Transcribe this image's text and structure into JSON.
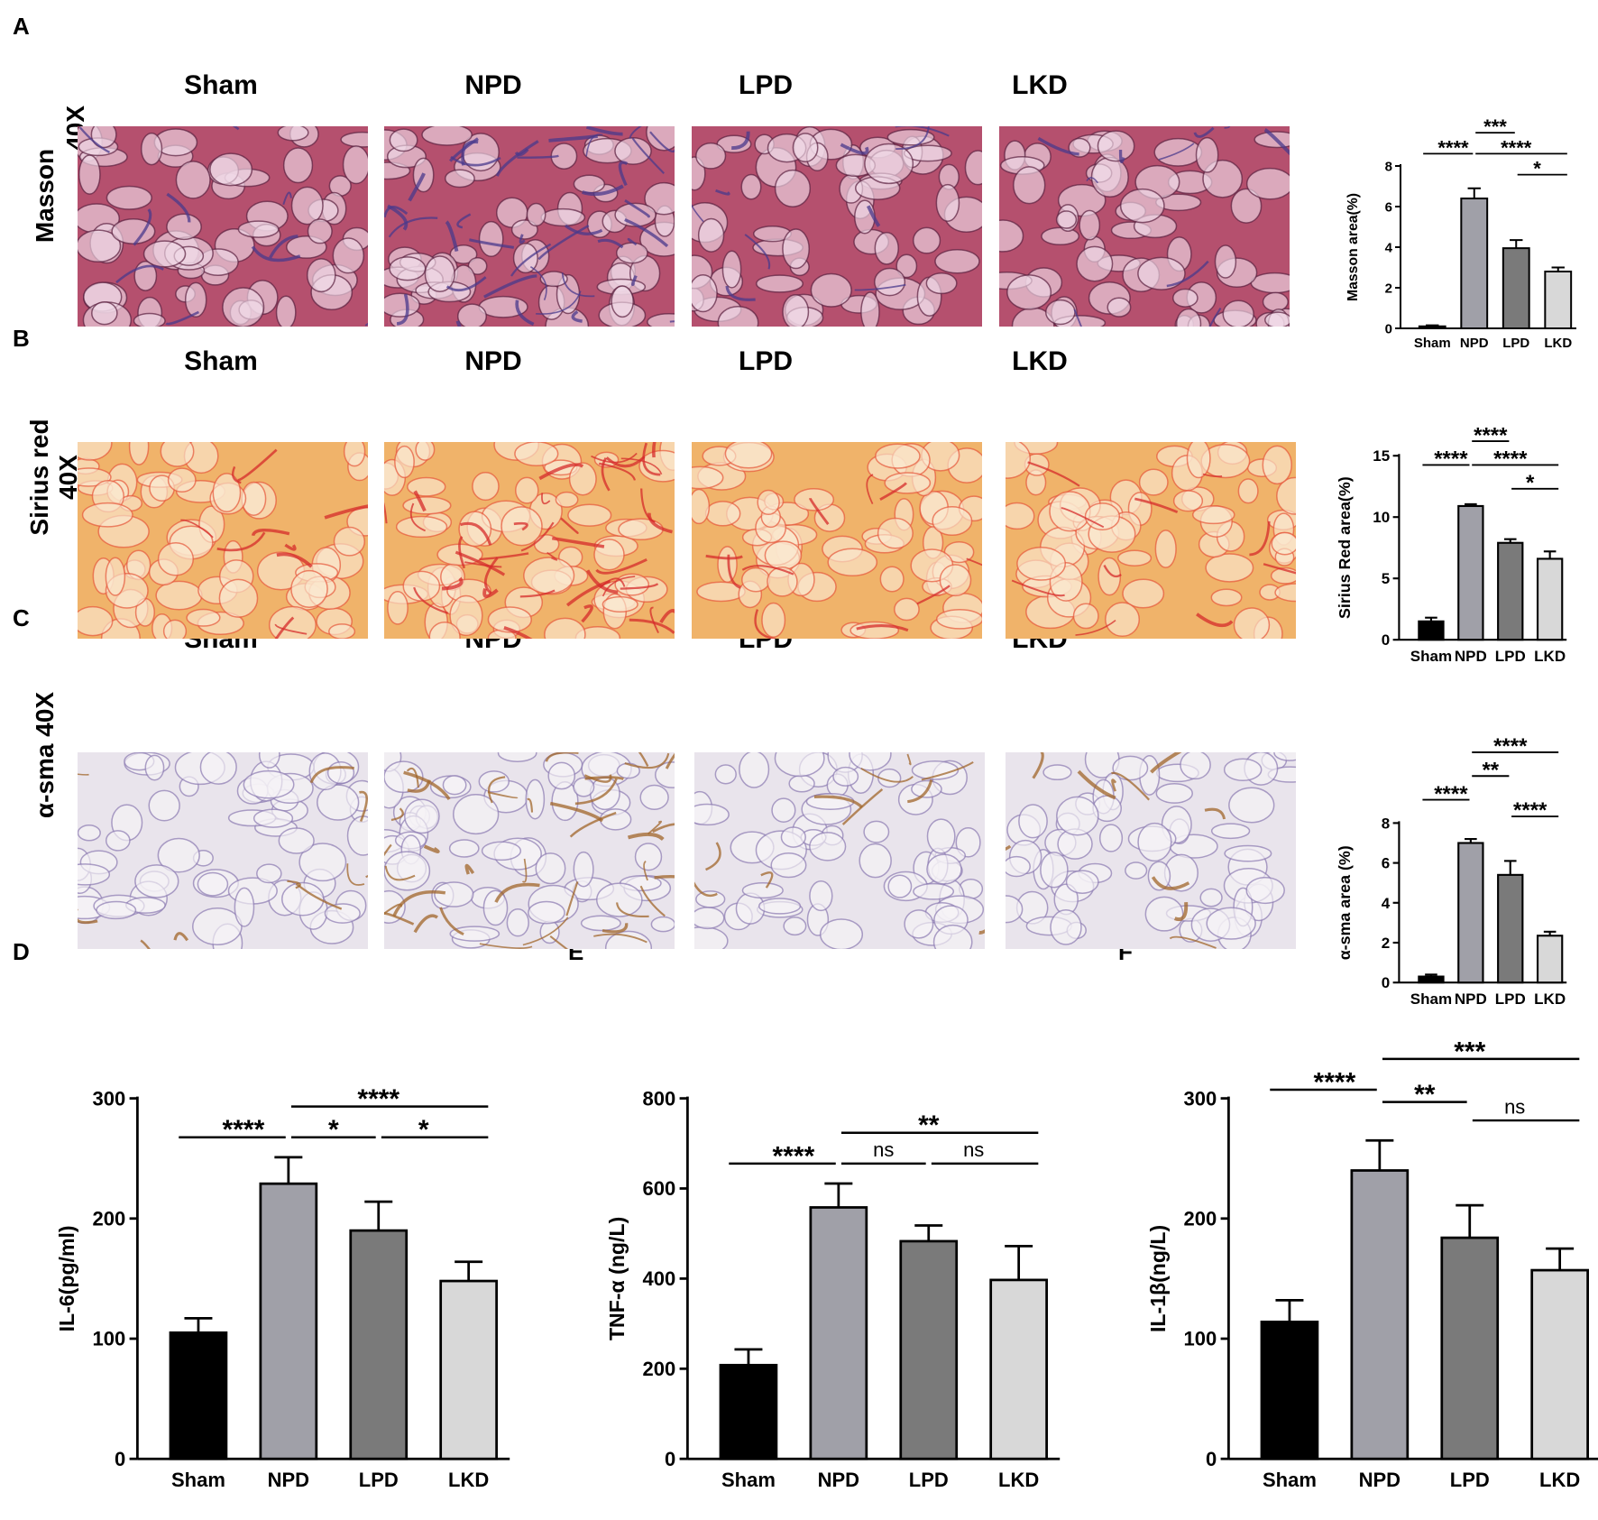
{
  "panels": {
    "A": {
      "letter": "A",
      "row_label": [
        "Masson",
        "40X"
      ]
    },
    "B": {
      "letter": "B",
      "row_label": [
        "Sirius red",
        "40X"
      ]
    },
    "C": {
      "letter": "C",
      "row_label": [
        "α-sma 40X"
      ]
    },
    "D": {
      "letter": "D"
    },
    "E": {
      "letter": "E"
    },
    "F": {
      "letter": "F"
    }
  },
  "group_headers": [
    "Sham",
    "NPD",
    "LPD",
    "LKD"
  ],
  "image_styles": {
    "masson": {
      "base": "#b5506e",
      "line": "#5a1f3e",
      "spot": "#efd9e6",
      "accent": "#4a3a8c"
    },
    "sirius": {
      "base": "#f0b36a",
      "line": "#e6573a",
      "spot": "#fbe8cf",
      "accent": "#d62b2b"
    },
    "asma": {
      "base": "#e9e4ec",
      "line": "#8a79b0",
      "spot": "#f6f3f6",
      "accent": "#a0652a"
    }
  },
  "bar_colors": [
    "#000000",
    "#a0a0a8",
    "#7a7a7a",
    "#d8d8d8"
  ],
  "chart_data": [
    {
      "id": "A",
      "type": "bar",
      "ylabel": "Masson area(%)",
      "categories": [
        "Sham",
        "NPD",
        "LPD",
        "LKD"
      ],
      "values": [
        0.1,
        6.4,
        3.95,
        2.8
      ],
      "errors": [
        0.05,
        0.5,
        0.4,
        0.2
      ],
      "ylim": [
        0,
        8
      ],
      "yticks": [
        0,
        2,
        4,
        6,
        8
      ],
      "significance": [
        {
          "from": 1,
          "to": 2,
          "label": "***",
          "level": 3
        },
        {
          "from": 0,
          "to": 1,
          "label": "****",
          "level": 2
        },
        {
          "from": 1,
          "to": 3,
          "label": "****",
          "level": 2
        },
        {
          "from": 2,
          "to": 3,
          "label": "*",
          "level": 1
        }
      ]
    },
    {
      "id": "B",
      "type": "bar",
      "ylabel": "Sirius Red area(%)",
      "categories": [
        "Sham",
        "NPD",
        "LPD",
        "LKD"
      ],
      "values": [
        1.5,
        10.9,
        7.9,
        6.6
      ],
      "errors": [
        0.3,
        0.15,
        0.3,
        0.6
      ],
      "ylim": [
        0,
        15
      ],
      "yticks": [
        0,
        5,
        10,
        15
      ],
      "significance": [
        {
          "from": 1,
          "to": 2,
          "label": "****",
          "level": 3
        },
        {
          "from": 0,
          "to": 1,
          "label": "****",
          "level": 2
        },
        {
          "from": 1,
          "to": 3,
          "label": "****",
          "level": 2
        },
        {
          "from": 2,
          "to": 3,
          "label": "*",
          "level": 1
        }
      ]
    },
    {
      "id": "C",
      "type": "bar",
      "ylabel": "α-sma area (%)",
      "categories": [
        "Sham",
        "NPD",
        "LPD",
        "LKD"
      ],
      "values": [
        0.3,
        7.0,
        5.4,
        2.35
      ],
      "errors": [
        0.1,
        0.2,
        0.7,
        0.2
      ],
      "ylim": [
        0,
        8
      ],
      "yticks": [
        0,
        2,
        4,
        6,
        8
      ],
      "significance": [
        {
          "from": 1,
          "to": 3,
          "label": "****",
          "level": 4
        },
        {
          "from": 1,
          "to": 2,
          "label": "**",
          "level": 3
        },
        {
          "from": 0,
          "to": 1,
          "label": "****",
          "level": 2
        },
        {
          "from": 2,
          "to": 3,
          "label": "****",
          "level": 1.3
        }
      ]
    },
    {
      "id": "D",
      "type": "bar",
      "ylabel": "IL-6(pg/ml)",
      "categories": [
        "Sham",
        "NPD",
        "LPD",
        "LKD"
      ],
      "values": [
        105,
        229,
        190,
        148
      ],
      "errors": [
        12,
        22,
        24,
        16
      ],
      "ylim": [
        0,
        300
      ],
      "yticks": [
        0,
        100,
        200,
        300
      ],
      "significance": [
        {
          "from": 1,
          "to": 3,
          "label": "****",
          "level": 2
        },
        {
          "from": 0,
          "to": 1,
          "label": "****",
          "level": 1
        },
        {
          "from": 1,
          "to": 2,
          "label": "*",
          "level": 1
        },
        {
          "from": 2,
          "to": 3,
          "label": "*",
          "level": 1
        }
      ]
    },
    {
      "id": "E",
      "type": "bar",
      "ylabel": "TNF-α (ng/L)",
      "categories": [
        "Sham",
        "NPD",
        "LPD",
        "LKD"
      ],
      "values": [
        208,
        558,
        483,
        397
      ],
      "errors": [
        35,
        53,
        35,
        75
      ],
      "ylim": [
        0,
        800
      ],
      "yticks": [
        0,
        200,
        400,
        600,
        800
      ],
      "significance": [
        {
          "from": 1,
          "to": 3,
          "label": "**",
          "level": 2
        },
        {
          "from": 0,
          "to": 1,
          "label": "****",
          "level": 1
        },
        {
          "from": 1,
          "to": 2,
          "label": "ns",
          "level": 1
        },
        {
          "from": 2,
          "to": 3,
          "label": "ns",
          "level": 1
        }
      ]
    },
    {
      "id": "F",
      "type": "bar",
      "ylabel": "IL-1β(ng/L)",
      "categories": [
        "Sham",
        "NPD",
        "LPD",
        "LKD"
      ],
      "values": [
        114,
        240,
        184,
        157
      ],
      "errors": [
        18,
        25,
        27,
        18
      ],
      "ylim": [
        0,
        300
      ],
      "yticks": [
        0,
        100,
        200,
        300
      ],
      "significance": [
        {
          "from": 1,
          "to": 3,
          "label": "***",
          "level": 3
        },
        {
          "from": 0,
          "to": 1,
          "label": "****",
          "level": 2
        },
        {
          "from": 1,
          "to": 2,
          "label": "**",
          "level": 1.6
        },
        {
          "from": 2,
          "to": 3,
          "label": "ns",
          "level": 1
        }
      ]
    }
  ]
}
